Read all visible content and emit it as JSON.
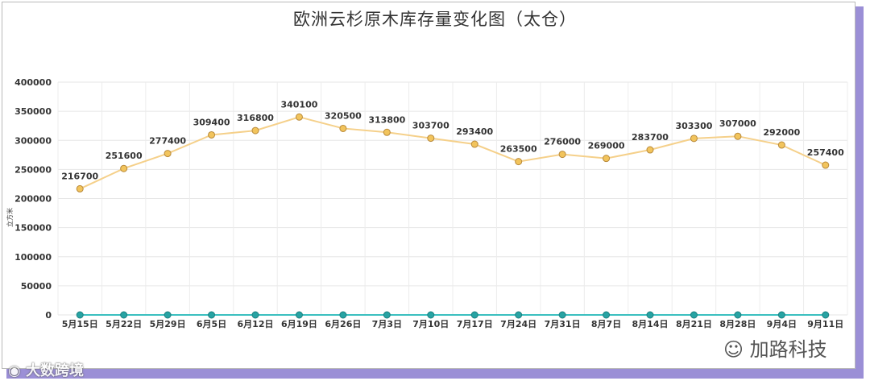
{
  "chart_data": {
    "type": "line",
    "title": "欧洲云杉原木库存量变化图（太仓）",
    "ylabel": "立方米",
    "xlabel": "",
    "ylim": [
      0,
      400000
    ],
    "yticks": [
      "0",
      "50000",
      "100000",
      "150000",
      "200000",
      "250000",
      "300000",
      "350000",
      "400000"
    ],
    "grid": true,
    "categories": [
      "5月15日",
      "5月22日",
      "5月29日",
      "6月5日",
      "6月12日",
      "6月19日",
      "6月26日",
      "7月3日",
      "7月10日",
      "7月17日",
      "7月24日",
      "7月31日",
      "8月7日",
      "8月14日",
      "8月21日",
      "8月28日",
      "9月4日",
      "9月11日"
    ],
    "series": [
      {
        "color": "#f5d08a",
        "marker_color": "#f2c45c",
        "values": [
          216700,
          251600,
          277400,
          309400,
          316800,
          340100,
          320500,
          313800,
          303700,
          293400,
          263500,
          276000,
          269000,
          283700,
          303300,
          307000,
          292000,
          257400
        ],
        "labels": [
          "216700",
          "251600",
          "277400",
          "309400",
          "316800",
          "340100",
          "320500",
          "313800",
          "303700",
          "293400",
          "263500",
          "276000",
          "269000",
          "283700",
          "303300",
          "307000",
          "292000",
          "257400"
        ]
      },
      {
        "color": "#3bbfbf",
        "marker_color": "#27a3a3",
        "values": [
          0,
          0,
          0,
          0,
          0,
          0,
          0,
          0,
          0,
          0,
          0,
          0,
          0,
          0,
          0,
          0,
          0,
          0
        ]
      }
    ]
  },
  "watermarks": {
    "left": "大数跨境",
    "right": "加路科技"
  }
}
